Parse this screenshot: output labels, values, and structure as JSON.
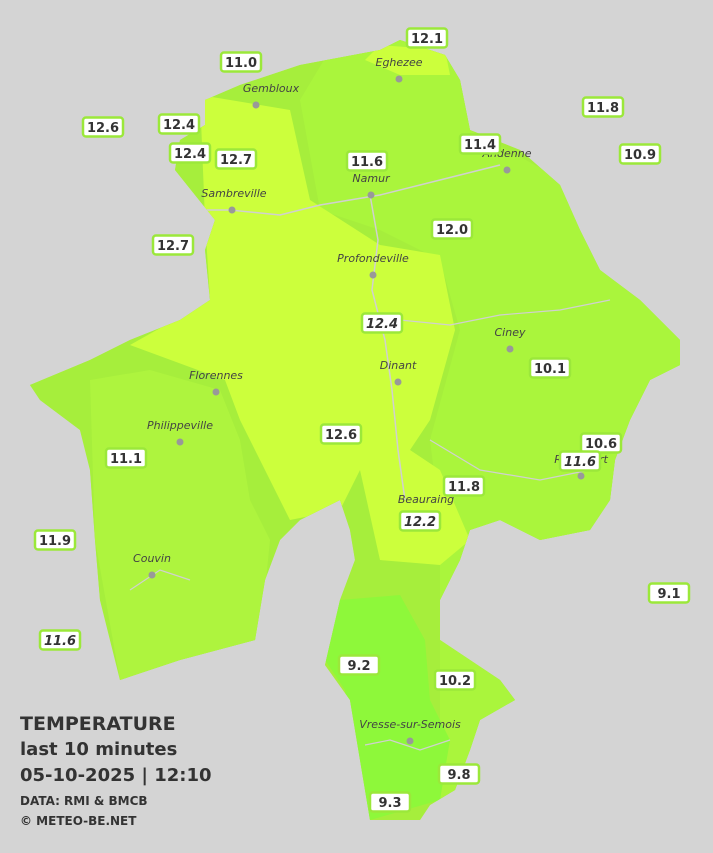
{
  "title": {
    "lines": [
      "TEMPERATURE",
      "last 10 minutes",
      "05-10-2025  |  12:10",
      "DATA: RMI & BMCB",
      "© METEO-BE.NET"
    ]
  },
  "cities": [
    "Eghezee",
    "Gembloux",
    "Andenne",
    "Namur",
    "Sambreville",
    "Profondeville",
    "Ciney",
    "Dinant",
    "Florennes",
    "Philippeville",
    "Rochefort",
    "Beauraing",
    "Couvin",
    "Vresse-sur-Semois"
  ],
  "stations": [
    {
      "label": "12.1"
    },
    {
      "label": "11.0"
    },
    {
      "label": "12.6"
    },
    {
      "label": "12.4"
    },
    {
      "label": "11.8"
    },
    {
      "label": "12.4"
    },
    {
      "label": "12.7"
    },
    {
      "label": "11.6"
    },
    {
      "label": "11.4"
    },
    {
      "label": "10.9"
    },
    {
      "label": "12.0"
    },
    {
      "label": "12.7"
    },
    {
      "label": "12.4",
      "italic": true
    },
    {
      "label": "10.1"
    },
    {
      "label": "12.6"
    },
    {
      "label": "10.6"
    },
    {
      "label": "11.6",
      "italic": true
    },
    {
      "label": "11.1"
    },
    {
      "label": "11.8"
    },
    {
      "label": "12.2",
      "italic": true
    },
    {
      "label": "11.9"
    },
    {
      "label": "9.1"
    },
    {
      "label": "11.6",
      "italic": true
    },
    {
      "label": "9.2"
    },
    {
      "label": "10.2"
    },
    {
      "label": "9.8"
    },
    {
      "label": "9.3"
    }
  ]
}
